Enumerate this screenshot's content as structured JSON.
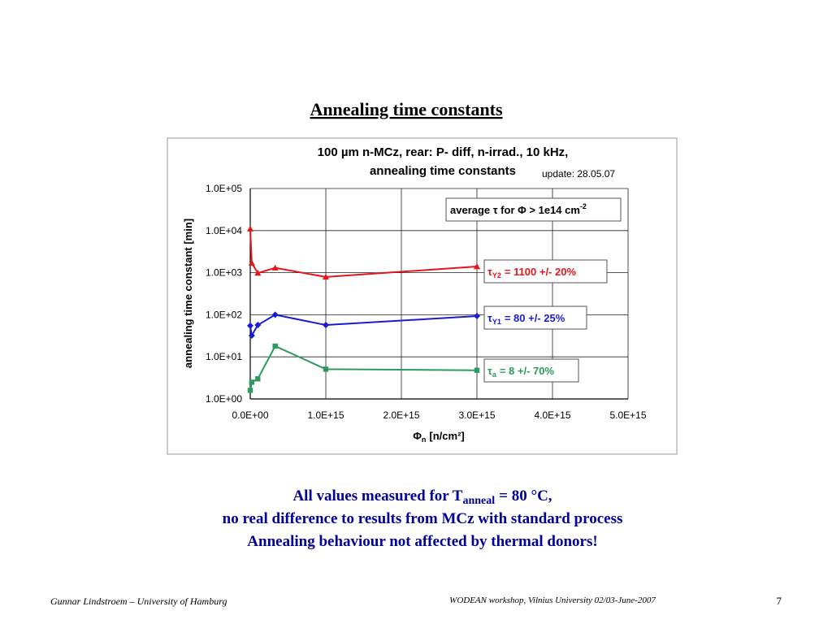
{
  "slide": {
    "title": "Annealing time constants",
    "body": [
      {
        "text": "All values measured for T",
        "subscript": "anneal",
        "rest": "= 80 °C,"
      },
      {
        "text": "no real difference to results from MCz with standard process"
      },
      {
        "text": "Annealing behaviour not affected by thermal donors!"
      }
    ],
    "footer_left": "Gunnar Lindstroem – University of Hamburg",
    "footer_center": "WODEAN workshop, Vilnius University 02/03-June-2007",
    "page_number": 7
  },
  "chart_data": {
    "type": "line",
    "title": [
      "100 µm n-MCz, rear: P- diff, n-irrad., 10 kHz,",
      "annealing time constants"
    ],
    "update": "update: 28.05.07",
    "x_label": {
      "symbol": "Φ",
      "subscript": "n",
      "text": "[n/cm²]"
    },
    "y_label": "annealing time constant [min]",
    "x": [
      0,
      20000000000000.0,
      100000000000000.0,
      330000000000000.0,
      1000000000000000.0,
      3000000000000000.0
    ],
    "series": [
      {
        "name": {
          "symbol": "τ",
          "subscript": "Y2",
          "text": "= 1100 +/- 20%"
        },
        "color": "#e8141a",
        "marker": "triangle",
        "values": [
          11000,
          1700,
          980,
          1300,
          790,
          1400
        ]
      },
      {
        "name": {
          "symbol": "τ",
          "subscript": "Y1",
          "text": "= 80 +/- 25%"
        },
        "color": "#1a1ad6",
        "marker": "diamond",
        "values": [
          55,
          32,
          57,
          100,
          57,
          93
        ]
      },
      {
        "name": {
          "symbol": "τ",
          "subscript": "a",
          "text": "= 8 +/- 70%"
        },
        "color": "#2e9a5c",
        "marker": "square",
        "values": [
          1.6,
          2.5,
          3.0,
          18,
          5.1,
          4.8
        ]
      }
    ],
    "annotation": {
      "text": "average τ for Φ > 1e14 cm",
      "superscript": "-2"
    },
    "xlim": [
      0,
      5000000000000000.0
    ],
    "xticks": [
      {
        "value": 0,
        "label": "0.0E+00"
      },
      {
        "value": 1000000000000000.0,
        "label": "1.0E+15"
      },
      {
        "value": 2000000000000000.0,
        "label": "2.0E+15"
      },
      {
        "value": 3000000000000000.0,
        "label": "3.0E+15"
      },
      {
        "value": 4000000000000000.0,
        "label": "4.0E+15"
      },
      {
        "value": 5000000000000000.0,
        "label": "5.0E+15"
      }
    ],
    "ylim": [
      1,
      100000
    ],
    "ylog": true,
    "yticks": [
      {
        "value": 1,
        "label": "1.0E+00"
      },
      {
        "value": 10,
        "label": "1.0E+01"
      },
      {
        "value": 100,
        "label": "1.0E+02"
      },
      {
        "value": 1000,
        "label": "1.0E+03"
      },
      {
        "value": 10000,
        "label": "1.0E+04"
      },
      {
        "value": 100000,
        "label": "1.0E+05"
      }
    ],
    "grid": true
  }
}
